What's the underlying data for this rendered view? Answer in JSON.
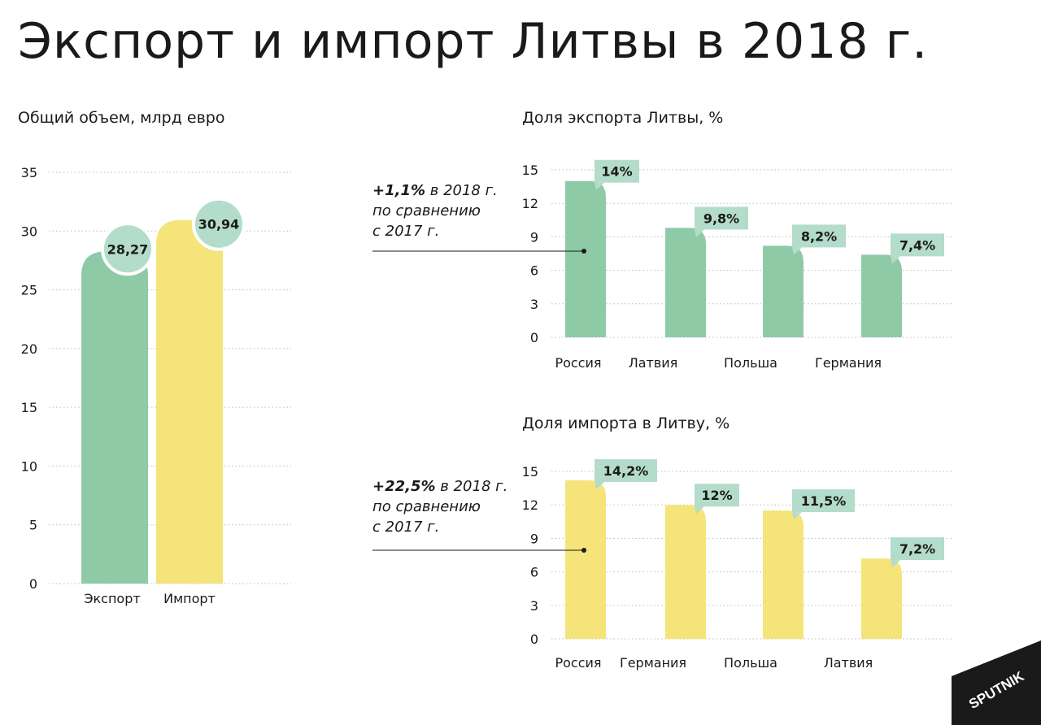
{
  "title": "Экспорт и импорт Литвы в 2018 г.",
  "colors": {
    "export": "#8fcaa7",
    "import": "#f5e47a",
    "label_bg": "#b4dccb",
    "grid": "#bbbbbb"
  },
  "logo": {
    "text": "SPUTNIK",
    "color": "#1a1a1a"
  },
  "chart_data": [
    {
      "type": "bar",
      "title": "Общий объем, млрд евро",
      "categories": [
        "Экспорт",
        "Импорт"
      ],
      "values": [
        28.27,
        30.94
      ],
      "value_labels": [
        "28,27",
        "30,94"
      ],
      "ylim": [
        0,
        35
      ],
      "yticks": [
        0,
        5,
        10,
        15,
        20,
        25,
        30,
        35
      ],
      "grid": true
    },
    {
      "type": "bar",
      "title": "Доля экспорта Литвы, %",
      "categories": [
        "Россия",
        "Латвия",
        "Польша",
        "Германия"
      ],
      "values": [
        14,
        9.8,
        8.2,
        7.4
      ],
      "value_labels": [
        "14%",
        "9,8%",
        "8,2%",
        "7,4%"
      ],
      "ylim": [
        0,
        15
      ],
      "yticks": [
        0,
        3,
        6,
        9,
        12,
        15
      ],
      "grid": true,
      "annotation": {
        "bold": "+1,1%",
        "line1": " в 2018 г.",
        "line2": "по сравнению",
        "line3": "с 2017 г."
      }
    },
    {
      "type": "bar",
      "title": "Доля импорта в Литву, %",
      "categories": [
        "Россия",
        "Германия",
        "Польша",
        "Латвия"
      ],
      "values": [
        14.2,
        12,
        11.5,
        7.2
      ],
      "value_labels": [
        "14,2%",
        "12%",
        "11,5%",
        "7,2%"
      ],
      "ylim": [
        0,
        15
      ],
      "yticks": [
        0,
        3,
        6,
        9,
        12,
        15
      ],
      "grid": true,
      "annotation": {
        "bold": "+22,5%",
        "line1": " в 2018 г.",
        "line2": "по сравнению",
        "line3": "с 2017 г."
      }
    }
  ]
}
